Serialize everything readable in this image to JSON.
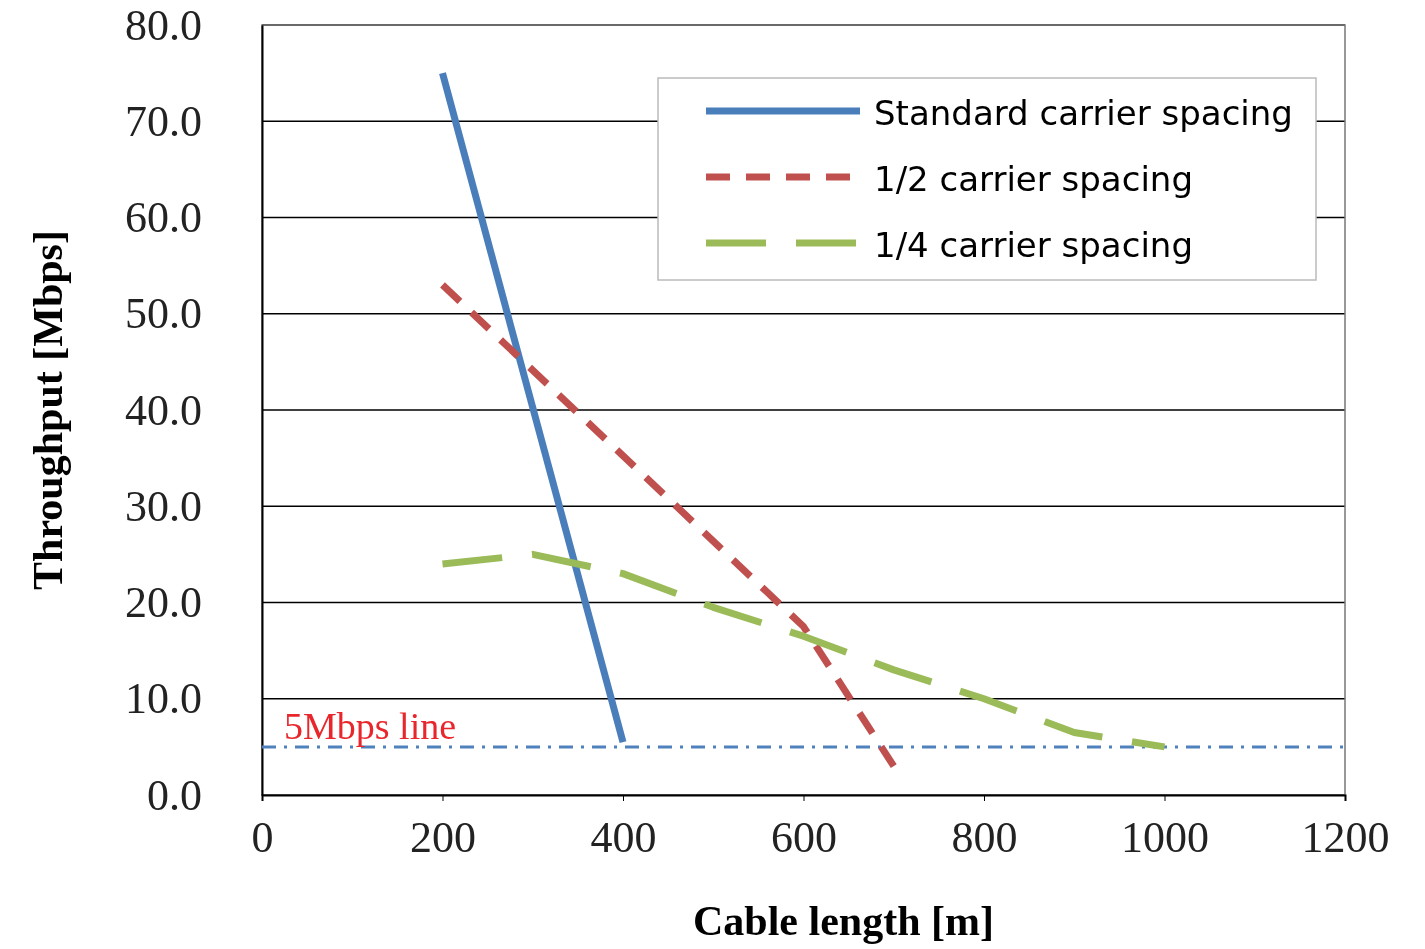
{
  "chart_data": {
    "type": "line",
    "xlabel": "Cable length [m]",
    "ylabel": "Throughput [Mbps]",
    "xlim": [
      0,
      1200
    ],
    "xticks": [
      0,
      200,
      400,
      600,
      800,
      1000,
      1200
    ],
    "ylim": [
      0,
      80
    ],
    "yticks": [
      {
        "value": 0,
        "label": "0.0"
      },
      {
        "value": 10,
        "label": "10.0"
      },
      {
        "value": 20,
        "label": "20.0"
      },
      {
        "value": 30,
        "label": "30.0"
      },
      {
        "value": 40,
        "label": "40.0"
      },
      {
        "value": 50,
        "label": "50.0"
      },
      {
        "value": 60,
        "label": "60.0"
      },
      {
        "value": 70,
        "label": "70.0"
      },
      {
        "value": 80,
        "label": "80.0"
      }
    ],
    "grid": "y",
    "legend": "top right",
    "marker": "none",
    "series": [
      {
        "name": "Standard carrier spacing",
        "color": "#4a7ebb",
        "line_style": "solid",
        "x": [
          200,
          400
        ],
        "values": [
          75,
          5.5
        ]
      },
      {
        "name": "1/2 carrier spacing",
        "color": "#c0504d",
        "line_style": "dashed",
        "x": [
          200,
          600,
          700
        ],
        "values": [
          53,
          17.5,
          3
        ]
      },
      {
        "name": "1/4 carrier spacing",
        "color": "#9bbb59",
        "line_style": "dashed",
        "x": [
          200,
          300,
          400,
          500,
          600,
          700,
          800,
          900,
          1000
        ],
        "values": [
          24,
          25,
          23,
          19.5,
          16.5,
          13,
          10,
          6.5,
          5
        ]
      }
    ],
    "ref_lines": [
      {
        "axis": "y",
        "value": 5,
        "label": "5Mbps line",
        "color": "#4f81bd",
        "line_style": "dashdot"
      }
    ]
  }
}
